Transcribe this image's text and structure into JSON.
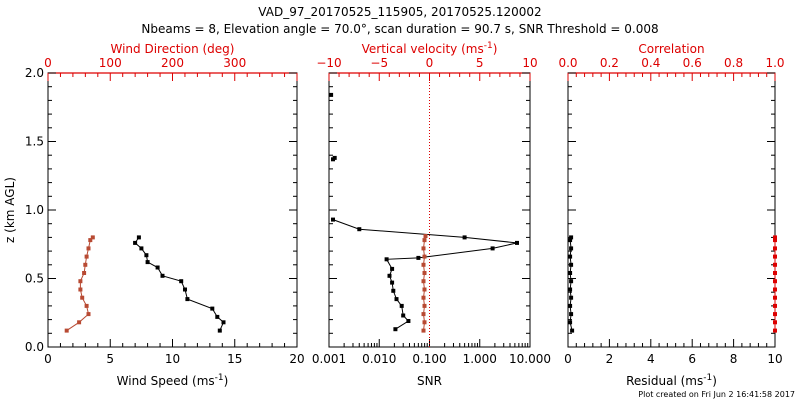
{
  "figure": {
    "title_line1": "VAD_97_20170525_115905, 20170525.120002",
    "title_line2": "Nbeams = 8, Elevation angle = 70.0°, scan duration = 90.7 s, SNR Threshold = 0.008",
    "footer": "Plot created on Fri Jun  2 16:41:58 2017",
    "colors": {
      "axis": "#000000",
      "secondary": "#dd0000",
      "direction_series": "#b84a33",
      "series": "#000000"
    }
  },
  "chart_data": [
    {
      "type": "line",
      "panel": "wind",
      "ylabel": "z (km AGL)",
      "ylim": [
        0,
        2
      ],
      "yticks": [
        "0.0",
        "0.5",
        "1.0",
        "1.5",
        "2.0"
      ],
      "xlabel": "Wind Speed (ms",
      "xlabel_sup": "-1",
      "xlabel_close": ")",
      "xlim": [
        0,
        20
      ],
      "xticks": [
        "0",
        "5",
        "10",
        "15",
        "20"
      ],
      "top_label": "Wind Direction (deg)",
      "top_lim": [
        0,
        400
      ],
      "top_ticks": [
        "0",
        "100",
        "200",
        "300"
      ],
      "series": [
        {
          "axis": "bottom",
          "color": "#000000",
          "points": [
            [
              13.8,
              0.12
            ],
            [
              14.1,
              0.18
            ],
            [
              13.6,
              0.22
            ],
            [
              13.2,
              0.28
            ],
            [
              11.2,
              0.35
            ],
            [
              11.0,
              0.42
            ],
            [
              10.7,
              0.48
            ],
            [
              9.2,
              0.52
            ],
            [
              8.8,
              0.58
            ],
            [
              8.0,
              0.62
            ],
            [
              7.9,
              0.67
            ],
            [
              7.5,
              0.72
            ],
            [
              7.0,
              0.76
            ],
            [
              7.3,
              0.8
            ]
          ]
        },
        {
          "axis": "top",
          "color": "#b84a33",
          "points": [
            [
              30,
              0.12
            ],
            [
              50,
              0.18
            ],
            [
              65,
              0.24
            ],
            [
              62,
              0.3
            ],
            [
              55,
              0.36
            ],
            [
              52,
              0.42
            ],
            [
              52,
              0.48
            ],
            [
              58,
              0.54
            ],
            [
              60,
              0.6
            ],
            [
              62,
              0.66
            ],
            [
              65,
              0.72
            ],
            [
              68,
              0.78
            ],
            [
              72,
              0.8
            ]
          ]
        }
      ]
    },
    {
      "type": "line",
      "panel": "snr",
      "ylim": [
        0,
        2
      ],
      "xlabel": "SNR",
      "xscale": "log",
      "xlim": [
        0.001,
        10
      ],
      "xticks": [
        "0.001",
        "0.010",
        "0.100",
        "1.000",
        "10.000"
      ],
      "top_label": "Vertical velocity (ms",
      "top_label_sup": "-1",
      "top_label_close": ")",
      "top_lim": [
        -10,
        10
      ],
      "top_ticks": [
        "−10",
        "−5",
        "0",
        "5",
        "10"
      ],
      "series": [
        {
          "axis": "bottom",
          "color": "#000000",
          "points": [
            [
              0.021,
              0.13
            ],
            [
              0.038,
              0.19
            ],
            [
              0.03,
              0.23
            ],
            [
              0.028,
              0.3
            ],
            [
              0.022,
              0.35
            ],
            [
              0.019,
              0.41
            ],
            [
              0.018,
              0.47
            ],
            [
              0.016,
              0.52
            ],
            [
              0.018,
              0.57
            ],
            [
              0.014,
              0.64
            ],
            [
              0.06,
              0.65
            ],
            [
              1.8,
              0.72
            ],
            [
              5.5,
              0.76
            ],
            [
              0.5,
              0.8
            ],
            [
              0.004,
              0.86
            ],
            [
              0.0012,
              0.93
            ]
          ]
        },
        {
          "axis": "bottom",
          "color": "#000000",
          "points": [
            [
              0.0013,
              1.38
            ],
            [
              0.0012,
              1.37
            ]
          ]
        },
        {
          "axis": "bottom",
          "color": "#000000",
          "points": [
            [
              0.0011,
              1.84
            ]
          ]
        },
        {
          "axis": "top",
          "color": "#b84a33",
          "points": [
            [
              -0.6,
              0.12
            ],
            [
              -0.5,
              0.18
            ],
            [
              -0.6,
              0.24
            ],
            [
              -0.5,
              0.3
            ],
            [
              -0.6,
              0.36
            ],
            [
              -0.5,
              0.42
            ],
            [
              -0.6,
              0.48
            ],
            [
              -0.5,
              0.54
            ],
            [
              -0.6,
              0.6
            ],
            [
              -0.5,
              0.66
            ],
            [
              -0.6,
              0.72
            ],
            [
              -0.5,
              0.78
            ],
            [
              -0.4,
              0.81
            ]
          ]
        }
      ],
      "reference_line": {
        "axis": "top",
        "value": 0,
        "style": "dotted",
        "color": "#dd0000"
      }
    },
    {
      "type": "line",
      "panel": "residual",
      "ylim": [
        0,
        2
      ],
      "xlabel": "Residual (ms",
      "xlabel_sup": "-1",
      "xlabel_close": ")",
      "xlim": [
        0,
        10
      ],
      "xticks": [
        "0",
        "2",
        "4",
        "6",
        "8",
        "10"
      ],
      "top_label": "Correlation",
      "top_lim": [
        0,
        1
      ],
      "top_ticks": [
        "0.0",
        "0.2",
        "0.4",
        "0.6",
        "0.8",
        "1.0"
      ],
      "series": [
        {
          "axis": "bottom",
          "color": "#000000",
          "points": [
            [
              0.2,
              0.12
            ],
            [
              0.1,
              0.18
            ],
            [
              0.15,
              0.24
            ],
            [
              0.1,
              0.3
            ],
            [
              0.15,
              0.36
            ],
            [
              0.1,
              0.42
            ],
            [
              0.15,
              0.48
            ],
            [
              0.1,
              0.54
            ],
            [
              0.15,
              0.6
            ],
            [
              0.1,
              0.66
            ],
            [
              0.15,
              0.72
            ],
            [
              0.1,
              0.78
            ],
            [
              0.15,
              0.8
            ]
          ]
        },
        {
          "axis": "top",
          "color": "#dd0000",
          "points": [
            [
              1.0,
              0.12
            ],
            [
              1.0,
              0.18
            ],
            [
              1.0,
              0.24
            ],
            [
              1.0,
              0.3
            ],
            [
              1.0,
              0.36
            ],
            [
              1.0,
              0.42
            ],
            [
              1.0,
              0.48
            ],
            [
              1.0,
              0.54
            ],
            [
              1.0,
              0.6
            ],
            [
              1.0,
              0.66
            ],
            [
              1.0,
              0.72
            ],
            [
              1.0,
              0.78
            ],
            [
              1.0,
              0.8
            ]
          ]
        }
      ]
    }
  ]
}
